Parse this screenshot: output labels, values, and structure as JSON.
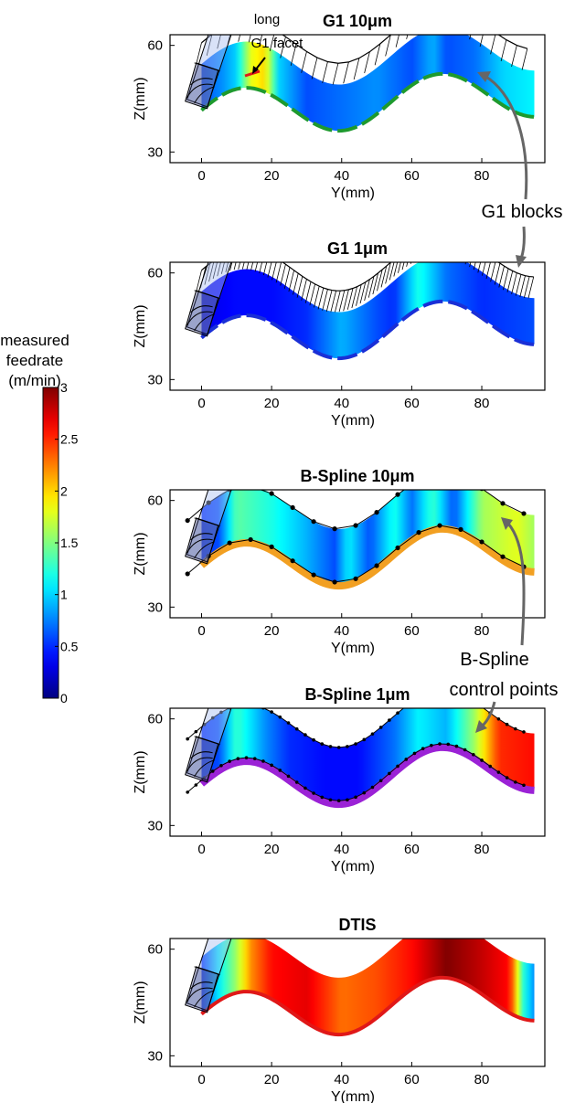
{
  "colorbar": {
    "label_lines": [
      "measured",
      "feedrate",
      "(m/min)"
    ],
    "ticks": [
      0,
      0.5,
      1,
      1.5,
      2,
      2.5,
      3
    ],
    "tick_labels": [
      "0",
      "0.5",
      "1",
      "1.5",
      "2",
      "2.5",
      "3"
    ],
    "range": [
      0,
      3
    ],
    "colormap": "jet"
  },
  "annotations": {
    "long_facet": [
      "long",
      "G1 facet"
    ],
    "g1_blocks": "G1 blocks",
    "bspline_cp": [
      "B-Spline",
      "control points"
    ]
  },
  "chart_data": [
    {
      "type": "area",
      "title": "G1 10μm",
      "xlabel": "Y(mm)",
      "ylabel": "Z(mm)",
      "xlim": [
        -9,
        98
      ],
      "ylim": [
        27,
        63
      ],
      "xticks": [
        0,
        20,
        40,
        60,
        80
      ],
      "xtick_labels": [
        "0",
        "20",
        "40",
        "60",
        "80"
      ],
      "yticks": [
        30,
        60
      ],
      "ytick_labels": [
        "30",
        "60"
      ],
      "toolpath_style": "G1 blocks",
      "edge_color": "#1e9a2e",
      "feedrate_profile": {
        "y": [
          0,
          6,
          10,
          14,
          18,
          22,
          30,
          40,
          50,
          60,
          66,
          70,
          78,
          86,
          95
        ],
        "feed": [
          0.6,
          0.8,
          1.0,
          1.8,
          2.0,
          1.0,
          0.6,
          0.7,
          0.8,
          0.6,
          0.9,
          0.6,
          0.7,
          1.0,
          1.1
        ]
      }
    },
    {
      "type": "area",
      "title": "G1 1μm",
      "xlabel": "Y(mm)",
      "ylabel": "Z(mm)",
      "xlim": [
        -9,
        98
      ],
      "ylim": [
        27,
        63
      ],
      "xticks": [
        0,
        20,
        40,
        60,
        80
      ],
      "xtick_labels": [
        "0",
        "20",
        "40",
        "60",
        "80"
      ],
      "yticks": [
        30,
        60
      ],
      "ytick_labels": [
        "30",
        "60"
      ],
      "toolpath_style": "G1 blocks",
      "edge_color": "#1a2fd6",
      "feedrate_profile": {
        "y": [
          0,
          10,
          20,
          30,
          40,
          50,
          55,
          62,
          70,
          80,
          95
        ],
        "feed": [
          0.3,
          0.4,
          0.4,
          0.5,
          0.9,
          0.6,
          0.5,
          1.2,
          0.7,
          0.5,
          0.6
        ]
      }
    },
    {
      "type": "area",
      "title": "B-Spline 10μm",
      "xlabel": "Y(mm)",
      "ylabel": "Z(mm)",
      "xlim": [
        -9,
        98
      ],
      "ylim": [
        27,
        63
      ],
      "xticks": [
        0,
        20,
        40,
        60,
        80
      ],
      "xtick_labels": [
        "0",
        "20",
        "40",
        "60",
        "80"
      ],
      "yticks": [
        30,
        60
      ],
      "ytick_labels": [
        "30",
        "60"
      ],
      "toolpath_style": "B-Spline control points",
      "edge_color": "#f2a022",
      "feedrate_profile": {
        "y": [
          0,
          5,
          10,
          20,
          30,
          38,
          42,
          48,
          55,
          60,
          66,
          72,
          80,
          90,
          95
        ],
        "feed": [
          0.5,
          0.6,
          1.4,
          1.2,
          0.9,
          0.6,
          1.1,
          0.6,
          1.2,
          0.7,
          1.3,
          0.6,
          1.6,
          1.8,
          1.6
        ]
      }
    },
    {
      "type": "area",
      "title": "B-Spline 1μm",
      "xlabel": "Y(mm)",
      "ylabel": "Z(mm)",
      "xlim": [
        -9,
        98
      ],
      "ylim": [
        27,
        63
      ],
      "xticks": [
        0,
        20,
        40,
        60,
        80
      ],
      "xtick_labels": [
        "0",
        "20",
        "40",
        "60",
        "80"
      ],
      "yticks": [
        30,
        60
      ],
      "ytick_labels": [
        "30",
        "60"
      ],
      "toolpath_style": "B-Spline control points",
      "edge_color": "#9b22d6",
      "feedrate_profile": {
        "y": [
          0,
          5,
          10,
          18,
          25,
          35,
          45,
          55,
          62,
          70,
          78,
          85,
          95
        ],
        "feed": [
          0.5,
          0.6,
          1.3,
          0.8,
          0.5,
          0.4,
          0.4,
          0.7,
          1.1,
          0.9,
          1.6,
          2.5,
          2.6
        ]
      }
    },
    {
      "type": "area",
      "title": "DTIS",
      "xlabel": "Y(mm)",
      "ylabel": "Z(mm)",
      "xlim": [
        -9,
        98
      ],
      "ylim": [
        27,
        63
      ],
      "xticks": [
        0,
        20,
        40,
        60,
        80
      ],
      "xtick_labels": [
        "0",
        "20",
        "40",
        "60",
        "80"
      ],
      "yticks": [
        30,
        60
      ],
      "ytick_labels": [
        "30",
        "60"
      ],
      "toolpath_style": "none",
      "edge_color": "#e01818",
      "feedrate_profile": {
        "y": [
          0,
          6,
          10,
          14,
          20,
          30,
          40,
          50,
          60,
          70,
          80,
          88,
          92,
          95
        ],
        "feed": [
          0.5,
          1.2,
          1.6,
          2.2,
          2.6,
          2.7,
          2.3,
          2.4,
          2.6,
          3.0,
          2.8,
          2.6,
          1.2,
          0.8
        ]
      }
    }
  ]
}
